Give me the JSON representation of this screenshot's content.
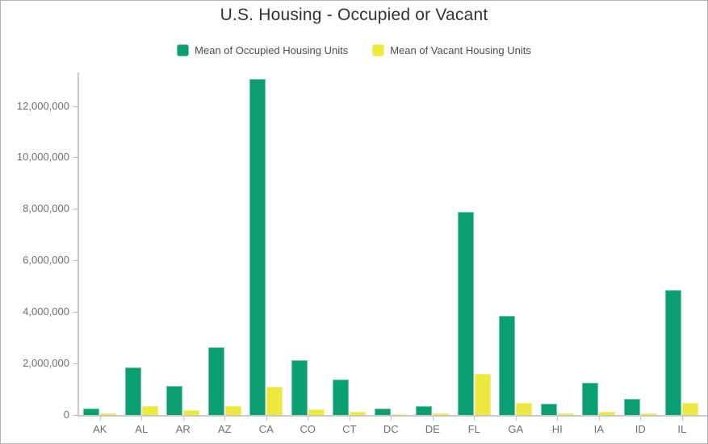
{
  "window": {
    "background": "#ffffff",
    "border_color": "#b3b3b3"
  },
  "chart_data": {
    "type": "bar",
    "title": "U.S. Housing - Occupied or Vacant",
    "categories": [
      "AK",
      "AL",
      "AR",
      "AZ",
      "CA",
      "CO",
      "CT",
      "DC",
      "DE",
      "FL",
      "GA",
      "HI",
      "IA",
      "ID",
      "IL"
    ],
    "series": [
      {
        "name": "Mean of Occupied Housing Units",
        "color": "#0a9e72",
        "border_color": "#6ec6ab",
        "values": [
          240000,
          1850000,
          1140000,
          2620000,
          13050000,
          2120000,
          1370000,
          260000,
          355000,
          7900000,
          3840000,
          440000,
          1240000,
          620000,
          4860000
        ]
      },
      {
        "name": "Mean of Vacant Housing Units",
        "color": "#ece93c",
        "border_color": "#f3f08c",
        "values": [
          55000,
          360000,
          195000,
          355000,
          1090000,
          220000,
          130000,
          30000,
          75000,
          1600000,
          470000,
          70000,
          120000,
          70000,
          470000
        ]
      }
    ],
    "xlabel": "",
    "ylabel": "",
    "ylim": [
      0,
      13300000
    ],
    "yticks": [
      0,
      2000000,
      4000000,
      6000000,
      8000000,
      10000000,
      12000000
    ],
    "ytick_labels": [
      "0",
      "2,000,000",
      "4,000,000",
      "6,000,000",
      "8,000,000",
      "10,000,000",
      "12,000,000"
    ],
    "grid": false,
    "legend_position": "top",
    "axis_color": "#c9c9c9",
    "tick_label_color": "#6e6e6e",
    "title_color": "#323232",
    "legend_text_color": "#4d4d4d"
  }
}
